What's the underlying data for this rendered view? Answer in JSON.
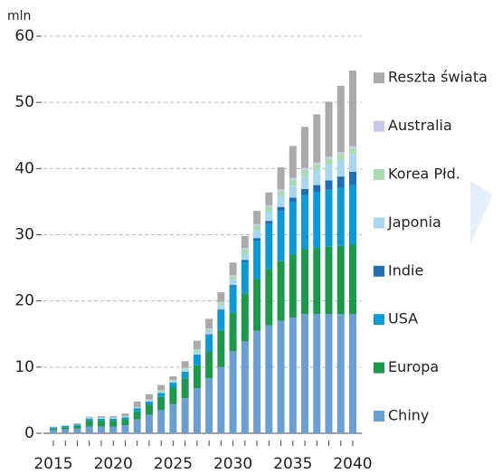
{
  "chart_data": {
    "type": "bar",
    "stacked": true,
    "y_label": "mln",
    "categories": [
      "2015",
      null,
      null,
      null,
      null,
      "2020",
      null,
      null,
      null,
      null,
      "2025",
      null,
      null,
      null,
      null,
      "2030",
      null,
      null,
      null,
      null,
      "2035",
      null,
      null,
      null,
      null,
      "2040"
    ],
    "ylim": [
      0,
      60
    ],
    "yticks": [
      0,
      10,
      20,
      30,
      40,
      50,
      60
    ],
    "grid": true,
    "series": [
      {
        "name": "Chiny",
        "color": "#6a9fd4",
        "values": [
          0.5,
          0.6,
          0.7,
          1,
          1,
          1,
          1.2,
          2.1,
          2.8,
          3.5,
          4.4,
          5.3,
          6.8,
          8.3,
          10,
          12.4,
          13.9,
          15.5,
          16.3,
          17,
          17.5,
          18,
          18,
          18,
          18,
          18
        ]
      },
      {
        "name": "Europa",
        "color": "#1a9a4a",
        "values": [
          0.2,
          0.3,
          0.4,
          0.9,
          0.9,
          0.9,
          0.9,
          1.2,
          1.5,
          2,
          2.5,
          3,
          3.5,
          4,
          5.5,
          5.8,
          7.2,
          7.8,
          8.5,
          9,
          9.5,
          9.8,
          10,
          10.2,
          10.3,
          10.5
        ]
      },
      {
        "name": "USA",
        "color": "#0a9ad8",
        "values": [
          0.2,
          0.2,
          0.2,
          0.3,
          0.3,
          0.3,
          0.3,
          0.5,
          0.5,
          0.6,
          0.7,
          0.9,
          1.5,
          2.5,
          3,
          4,
          4.8,
          5.8,
          6.8,
          7.6,
          7.9,
          8.2,
          8.4,
          8.6,
          8.8,
          9
        ]
      },
      {
        "name": "Indie",
        "color": "#1f6fb5",
        "values": [
          0,
          0,
          0,
          0,
          0,
          0,
          0,
          0,
          0,
          0,
          0.05,
          0.1,
          0.1,
          0.15,
          0.2,
          0.2,
          0.3,
          0.4,
          0.5,
          0.6,
          0.7,
          0.9,
          1.1,
          1.4,
          1.7,
          2
        ]
      },
      {
        "name": "Japonia",
        "color": "#a8d8f0",
        "values": [
          0.05,
          0.05,
          0.05,
          0.1,
          0.1,
          0.1,
          0.1,
          0.1,
          0.15,
          0.2,
          0.2,
          0.3,
          0.4,
          0.5,
          0.6,
          0.8,
          1,
          1.2,
          1.4,
          1.6,
          1.8,
          2,
          2.2,
          2.4,
          2.5,
          2.7
        ]
      },
      {
        "name": "Korea Płd.",
        "color": "#a8dcb0",
        "values": [
          0,
          0,
          0,
          0.05,
          0.05,
          0.05,
          0.05,
          0.1,
          0.1,
          0.15,
          0.15,
          0.2,
          0.3,
          0.3,
          0.4,
          0.5,
          0.6,
          0.7,
          0.8,
          0.8,
          0.9,
          0.9,
          0.9,
          0.9,
          0.9,
          0.9
        ]
      },
      {
        "name": "Australia",
        "color": "#c8c8ec",
        "values": [
          0,
          0,
          0,
          0,
          0,
          0,
          0,
          0,
          0.05,
          0.05,
          0.05,
          0.1,
          0.1,
          0.1,
          0.15,
          0.2,
          0.2,
          0.2,
          0.2,
          0.3,
          0.3,
          0.3,
          0.3,
          0.3,
          0.3,
          0.3
        ]
      },
      {
        "name": "Reszta świata",
        "color": "#aaaaaa",
        "values": [
          0.05,
          0.05,
          0.15,
          0.15,
          0.25,
          0.25,
          0.45,
          0.8,
          0.8,
          0.8,
          0.55,
          1,
          1.3,
          1.45,
          1.45,
          1.9,
          1.8,
          2,
          1.9,
          3.3,
          4.8,
          6.2,
          7.3,
          8.3,
          10,
          11.4
        ]
      }
    ]
  }
}
